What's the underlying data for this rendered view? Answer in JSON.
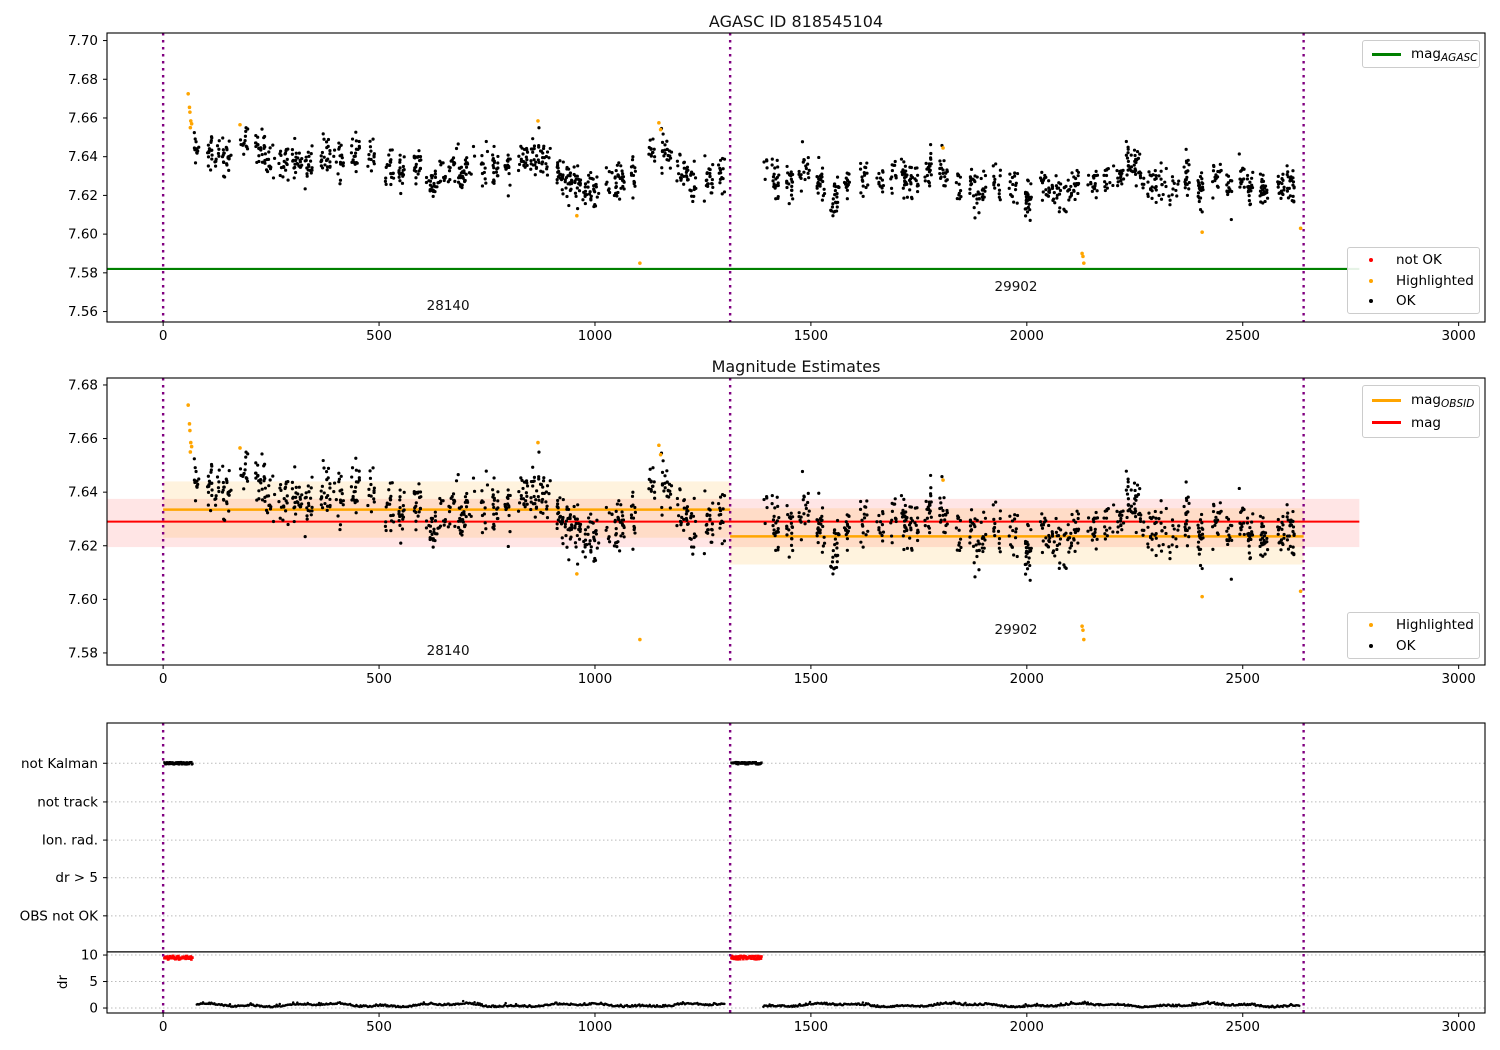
{
  "figure": {
    "background": "#ffffff"
  },
  "colors": {
    "ok_points": "#000000",
    "highlighted_points": "#ffa500",
    "not_ok_points": "#ff0000",
    "mag_agasc_line": "#008000",
    "mag_line": "#ff0000",
    "mag_obsid_line": "#ffa500",
    "obsid_boundary_line": "#800080",
    "grid": "#bbbbbb",
    "legend_border": "#cccccc"
  },
  "mag_series": {
    "seed": 12345,
    "point_color": "#000000",
    "highlighted_color": "#ffa500",
    "highlighted": [
      [
        58,
        7.6725
      ],
      [
        61,
        7.6655
      ],
      [
        62,
        7.663
      ],
      [
        64,
        7.6585
      ],
      [
        66,
        7.657
      ],
      [
        63,
        7.655
      ],
      [
        178,
        7.6565
      ],
      [
        868,
        7.6585
      ],
      [
        958,
        7.6095
      ],
      [
        1104,
        7.585
      ],
      [
        1148,
        7.6575
      ],
      [
        1152,
        7.654
      ],
      [
        1806,
        7.6445
      ],
      [
        2128,
        7.59
      ],
      [
        2130,
        7.5885
      ],
      [
        2132,
        7.585
      ],
      [
        2406,
        7.601
      ],
      [
        2634,
        7.603
      ]
    ],
    "segments": [
      {
        "obsid": "28140",
        "x_range": [
          72,
          1300
        ],
        "sigma": 0.005,
        "clamp": [
          7.608,
          7.656
        ],
        "trend": [
          [
            72,
            7.65
          ],
          [
            90,
            7.644
          ],
          [
            140,
            7.639
          ],
          [
            175,
            7.6425
          ],
          [
            210,
            7.641
          ],
          [
            250,
            7.638
          ],
          [
            285,
            7.6395
          ],
          [
            320,
            7.634
          ],
          [
            355,
            7.64
          ],
          [
            385,
            7.6435
          ],
          [
            420,
            7.636
          ],
          [
            455,
            7.6375
          ],
          [
            490,
            7.64
          ],
          [
            520,
            7.6335
          ],
          [
            560,
            7.636
          ],
          [
            600,
            7.6385
          ],
          [
            625,
            7.629
          ],
          [
            660,
            7.6325
          ],
          [
            700,
            7.634
          ],
          [
            740,
            7.636
          ],
          [
            780,
            7.6355
          ],
          [
            820,
            7.637
          ],
          [
            860,
            7.641
          ],
          [
            900,
            7.637
          ],
          [
            935,
            7.631
          ],
          [
            965,
            7.6225
          ],
          [
            1000,
            7.624
          ],
          [
            1040,
            7.6265
          ],
          [
            1080,
            7.629
          ],
          [
            1120,
            7.6395
          ],
          [
            1155,
            7.6425
          ],
          [
            1190,
            7.634
          ],
          [
            1225,
            7.6285
          ],
          [
            1260,
            7.6325
          ],
          [
            1300,
            7.631
          ]
        ]
      },
      {
        "obsid": "29902",
        "x_range": [
          1390,
          2632
        ],
        "sigma": 0.005,
        "clamp": [
          7.603,
          7.65
        ],
        "trend": [
          [
            1390,
            7.629
          ],
          [
            1420,
            7.6265
          ],
          [
            1455,
            7.623
          ],
          [
            1490,
            7.6285
          ],
          [
            1530,
            7.6195
          ],
          [
            1570,
            7.625
          ],
          [
            1610,
            7.627
          ],
          [
            1650,
            7.6235
          ],
          [
            1690,
            7.6285
          ],
          [
            1730,
            7.626
          ],
          [
            1770,
            7.6315
          ],
          [
            1800,
            7.635
          ],
          [
            1840,
            7.627
          ],
          [
            1880,
            7.6225
          ],
          [
            1920,
            7.6285
          ],
          [
            1960,
            7.6265
          ],
          [
            2000,
            7.621
          ],
          [
            2040,
            7.6235
          ],
          [
            2080,
            7.618
          ],
          [
            2120,
            7.6245
          ],
          [
            2160,
            7.6275
          ],
          [
            2200,
            7.631
          ],
          [
            2240,
            7.6365
          ],
          [
            2280,
            7.626
          ],
          [
            2320,
            7.6195
          ],
          [
            2360,
            7.6265
          ],
          [
            2400,
            7.6245
          ],
          [
            2440,
            7.629
          ],
          [
            2480,
            7.6315
          ],
          [
            2520,
            7.6265
          ],
          [
            2560,
            7.6245
          ],
          [
            2600,
            7.627
          ],
          [
            2632,
            7.621
          ]
        ]
      }
    ]
  },
  "chart_data": [
    {
      "type": "scatter",
      "title": "AGASC ID 818545104",
      "xlim": [
        -130,
        3061
      ],
      "ylim": [
        7.5546,
        7.7039
      ],
      "x_ticks": [
        0,
        500,
        1000,
        1500,
        2000,
        2500,
        3000
      ],
      "y_ticks": [
        7.56,
        7.58,
        7.6,
        7.62,
        7.64,
        7.66,
        7.68,
        7.7
      ],
      "vlines": [
        0,
        1313,
        2641
      ],
      "hlines": [
        {
          "label": "mag_AGASC",
          "value": 7.582,
          "color": "#008000",
          "x_range": [
            -130,
            2770
          ]
        }
      ],
      "annotations": [
        {
          "text": "28140",
          "x": 660,
          "y": 7.5627
        },
        {
          "text": "29902",
          "x": 1975,
          "y": 7.5727
        }
      ],
      "legend_top": {
        "entries": [
          {
            "swatch": "line",
            "color": "#008000",
            "prefix": "mag",
            "sub": "AGASC"
          }
        ]
      },
      "legend_bottom": {
        "entries": [
          {
            "swatch": "dot",
            "color": "#ff0000",
            "label": "not OK"
          },
          {
            "swatch": "dot",
            "color": "#ffa500",
            "label": "Highlighted"
          },
          {
            "swatch": "dot",
            "color": "#000000",
            "label": "OK"
          }
        ]
      }
    },
    {
      "type": "scatter",
      "title": "Magnitude Estimates",
      "xlim": [
        -130,
        3061
      ],
      "ylim": [
        7.5755,
        7.6826
      ],
      "x_ticks": [
        0,
        500,
        1000,
        1500,
        2000,
        2500,
        3000
      ],
      "y_ticks": [
        7.58,
        7.6,
        7.62,
        7.64,
        7.66,
        7.68
      ],
      "vlines": [
        0,
        1313,
        2641
      ],
      "mag_line": {
        "label": "mag",
        "value": 7.629,
        "band": [
          7.6195,
          7.6375
        ],
        "color": "#ff0000",
        "band_opacity": 0.1,
        "x_range": [
          -130,
          2770
        ]
      },
      "obsid_lines": [
        {
          "obsid": "28140",
          "value": 7.6335,
          "band": [
            7.623,
            7.644
          ],
          "color": "#ffa500",
          "band_opacity": 0.13,
          "x_range": [
            0,
            1313
          ]
        },
        {
          "obsid": "29902",
          "value": 7.6235,
          "band": [
            7.613,
            7.634
          ],
          "color": "#ffa500",
          "band_opacity": 0.13,
          "x_range": [
            1313,
            2641
          ]
        }
      ],
      "annotations": [
        {
          "text": "28140",
          "x": 660,
          "y": 7.5808
        },
        {
          "text": "29902",
          "x": 1975,
          "y": 7.5885
        }
      ],
      "legend_top": {
        "entries": [
          {
            "swatch": "line",
            "color": "#ffa500",
            "prefix": "mag",
            "sub": "OBSID"
          },
          {
            "swatch": "line",
            "color": "#ff0000",
            "prefix": "mag",
            "sub": ""
          }
        ]
      },
      "legend_bottom": {
        "entries": [
          {
            "swatch": "dot",
            "color": "#ffa500",
            "label": "Highlighted"
          },
          {
            "swatch": "dot",
            "color": "#000000",
            "label": "OK"
          }
        ]
      }
    },
    {
      "type": "timeline",
      "title": "",
      "xlim": [
        -130,
        3061
      ],
      "ylim": [
        -0.94,
        53.8
      ],
      "x_ticks": [
        0,
        500,
        1000,
        1500,
        2000,
        2500,
        3000
      ],
      "ylabel": "dr",
      "categories": [
        {
          "label": "not Kalman",
          "y": 46.2
        },
        {
          "label": "not track",
          "y": 38.9
        },
        {
          "label": "Ion. rad.",
          "y": 31.7
        },
        {
          "label": "dr > 5",
          "y": 24.6
        },
        {
          "label": "OBS not OK",
          "y": 17.4
        }
      ],
      "dr_ticks": [
        {
          "label": "10",
          "y": 10
        },
        {
          "label": "5",
          "y": 5
        },
        {
          "label": "0",
          "y": 0
        }
      ],
      "grid_ys": [
        46.2,
        38.9,
        31.7,
        24.6,
        17.4,
        10,
        5,
        0
      ],
      "hline_y": 10.6,
      "vlines": [
        0,
        1313,
        2641
      ],
      "flags": {
        "not_kalman": {
          "y": 46.2,
          "color": "#000000",
          "segments": [
            [
              3,
              68
            ],
            [
              1316,
              1386
            ]
          ]
        },
        "dr_saturated": {
          "y": 9.5,
          "color": "#ff0000",
          "segments": [
            [
              3,
              68
            ],
            [
              1316,
              1386
            ]
          ]
        }
      },
      "dr_trace": {
        "color": "#000000",
        "base": 0.42,
        "segments": [
          [
            78,
            1300
          ],
          [
            1390,
            2632
          ]
        ]
      }
    }
  ]
}
